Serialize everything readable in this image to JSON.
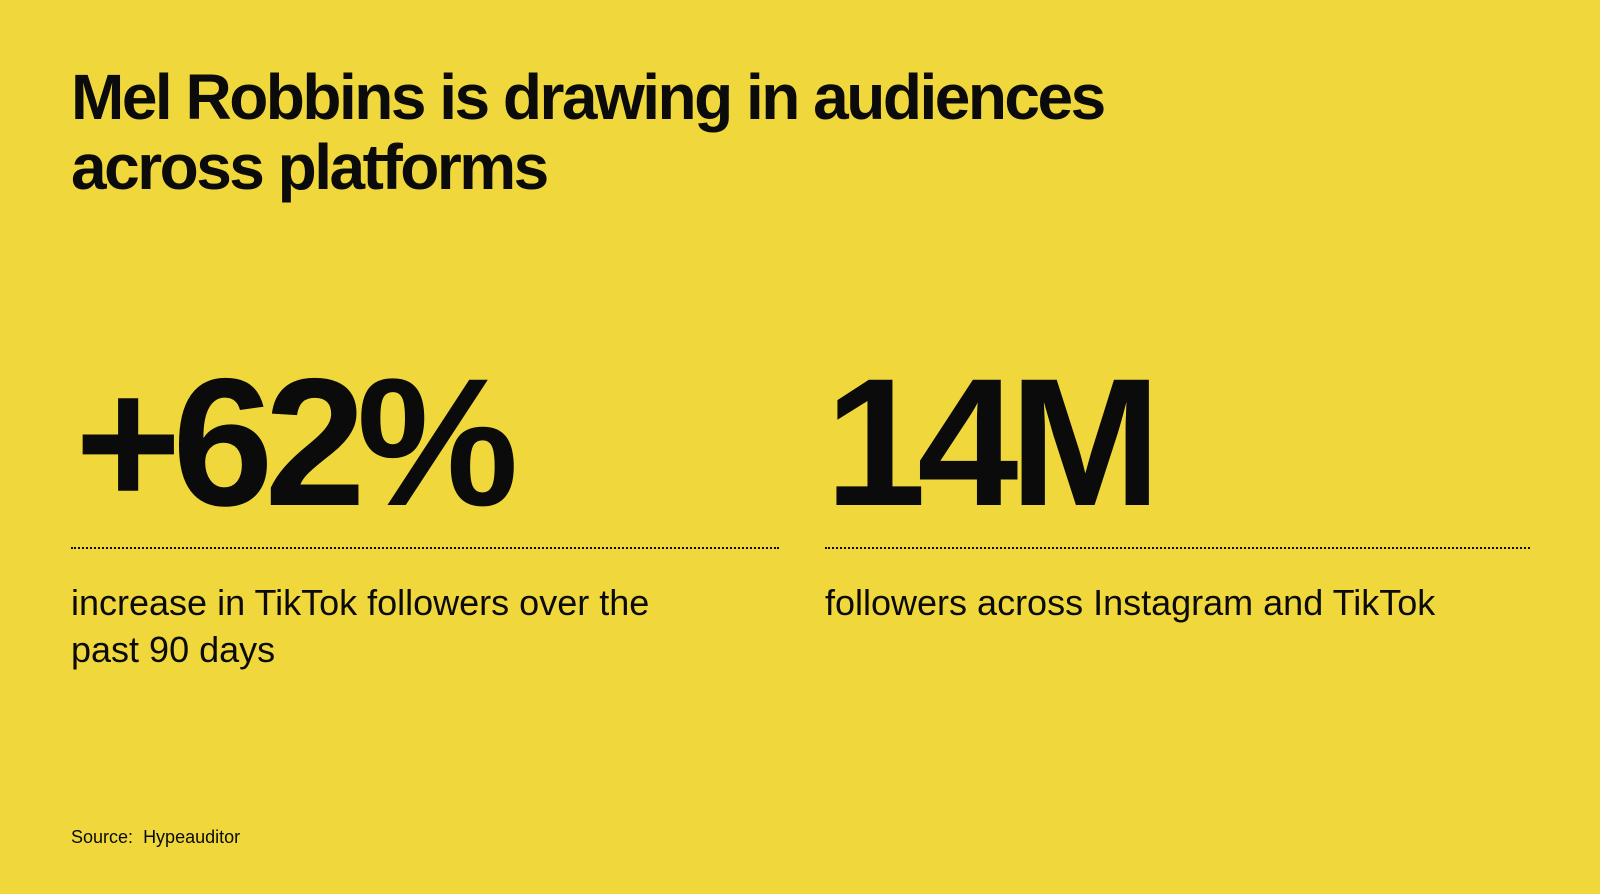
{
  "title": "Mel Robbins is drawing in audiences across platforms",
  "stats": [
    {
      "value": "+62%",
      "caption": "increase in TikTok followers over the past 90 days"
    },
    {
      "value": "14M",
      "caption": "followers across Instagram and TikTok"
    }
  ],
  "source": {
    "label": "Source:",
    "value": "Hypeauditor"
  },
  "colors": {
    "background": "#f0d83c",
    "text": "#0b0b0b"
  }
}
